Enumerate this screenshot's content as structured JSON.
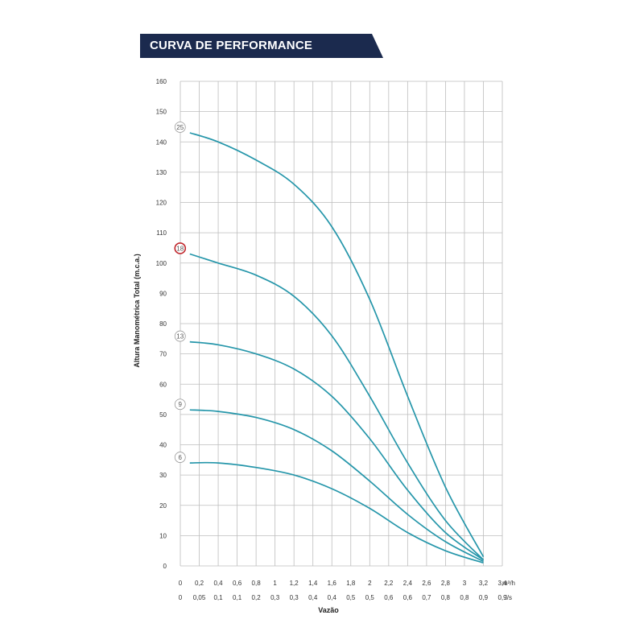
{
  "header": {
    "title": "CURVA DE PERFORMANCE",
    "bg_color": "#1b2a4e"
  },
  "chart_data": {
    "type": "line",
    "title": "CURVA DE PERFORMANCE",
    "xlabel": "Vazão",
    "ylabel": "Altura Manométrica Total (m.c.a.)",
    "ylim": [
      0,
      160
    ],
    "xlim": [
      0,
      3.4
    ],
    "grid": true,
    "line_color": "#2596aa",
    "highlight_color": "#c0272d",
    "y_ticks": [
      "0",
      "10",
      "20",
      "30",
      "40",
      "50",
      "60",
      "70",
      "80",
      "90",
      "100",
      "110",
      "120",
      "130",
      "140",
      "150",
      "160"
    ],
    "x_ticks_m3h": [
      "0",
      "0,2",
      "0,4",
      "0,6",
      "0,8",
      "1",
      "1,2",
      "1,4",
      "1,6",
      "1,8",
      "2",
      "2,2",
      "2,4",
      "2,6",
      "2,8",
      "3",
      "3,2",
      "3,4"
    ],
    "x_unit_m3h": "m³/h",
    "x_ticks_ls": [
      "0",
      "0,05",
      "0,1",
      "0,1",
      "0,2",
      "0,3",
      "0,3",
      "0,4",
      "0,4",
      "0,5",
      "0,5",
      "0,6",
      "0,6",
      "0,7",
      "0,8",
      "0,8",
      "0,9",
      "0,9"
    ],
    "x_unit_ls": "l/s",
    "series": [
      {
        "name": "25",
        "highlight": false,
        "x": [
          0.1,
          0.4,
          0.8,
          1.2,
          1.6,
          2.0,
          2.4,
          2.8,
          3.2
        ],
        "y": [
          143,
          140,
          134,
          126,
          112,
          88,
          56,
          26,
          3
        ]
      },
      {
        "name": "18",
        "highlight": true,
        "x": [
          0.1,
          0.4,
          0.8,
          1.2,
          1.6,
          2.0,
          2.4,
          2.8,
          3.2
        ],
        "y": [
          103,
          100,
          96,
          89,
          76,
          56,
          34,
          15,
          2
        ]
      },
      {
        "name": "13",
        "highlight": false,
        "x": [
          0.1,
          0.4,
          0.8,
          1.2,
          1.6,
          2.0,
          2.4,
          2.8,
          3.2
        ],
        "y": [
          74,
          73,
          70,
          65,
          56,
          42,
          25,
          11,
          2
        ]
      },
      {
        "name": "9",
        "highlight": false,
        "x": [
          0.1,
          0.4,
          0.8,
          1.2,
          1.6,
          2.0,
          2.4,
          2.8,
          3.2
        ],
        "y": [
          51.5,
          51,
          49,
          45,
          38,
          28,
          17,
          8,
          1.5
        ]
      },
      {
        "name": "6",
        "highlight": false,
        "x": [
          0.1,
          0.4,
          0.8,
          1.2,
          1.6,
          2.0,
          2.4,
          2.8,
          3.2
        ],
        "y": [
          34,
          34,
          32.5,
          30,
          25.5,
          19,
          11,
          5,
          1
        ]
      }
    ]
  }
}
